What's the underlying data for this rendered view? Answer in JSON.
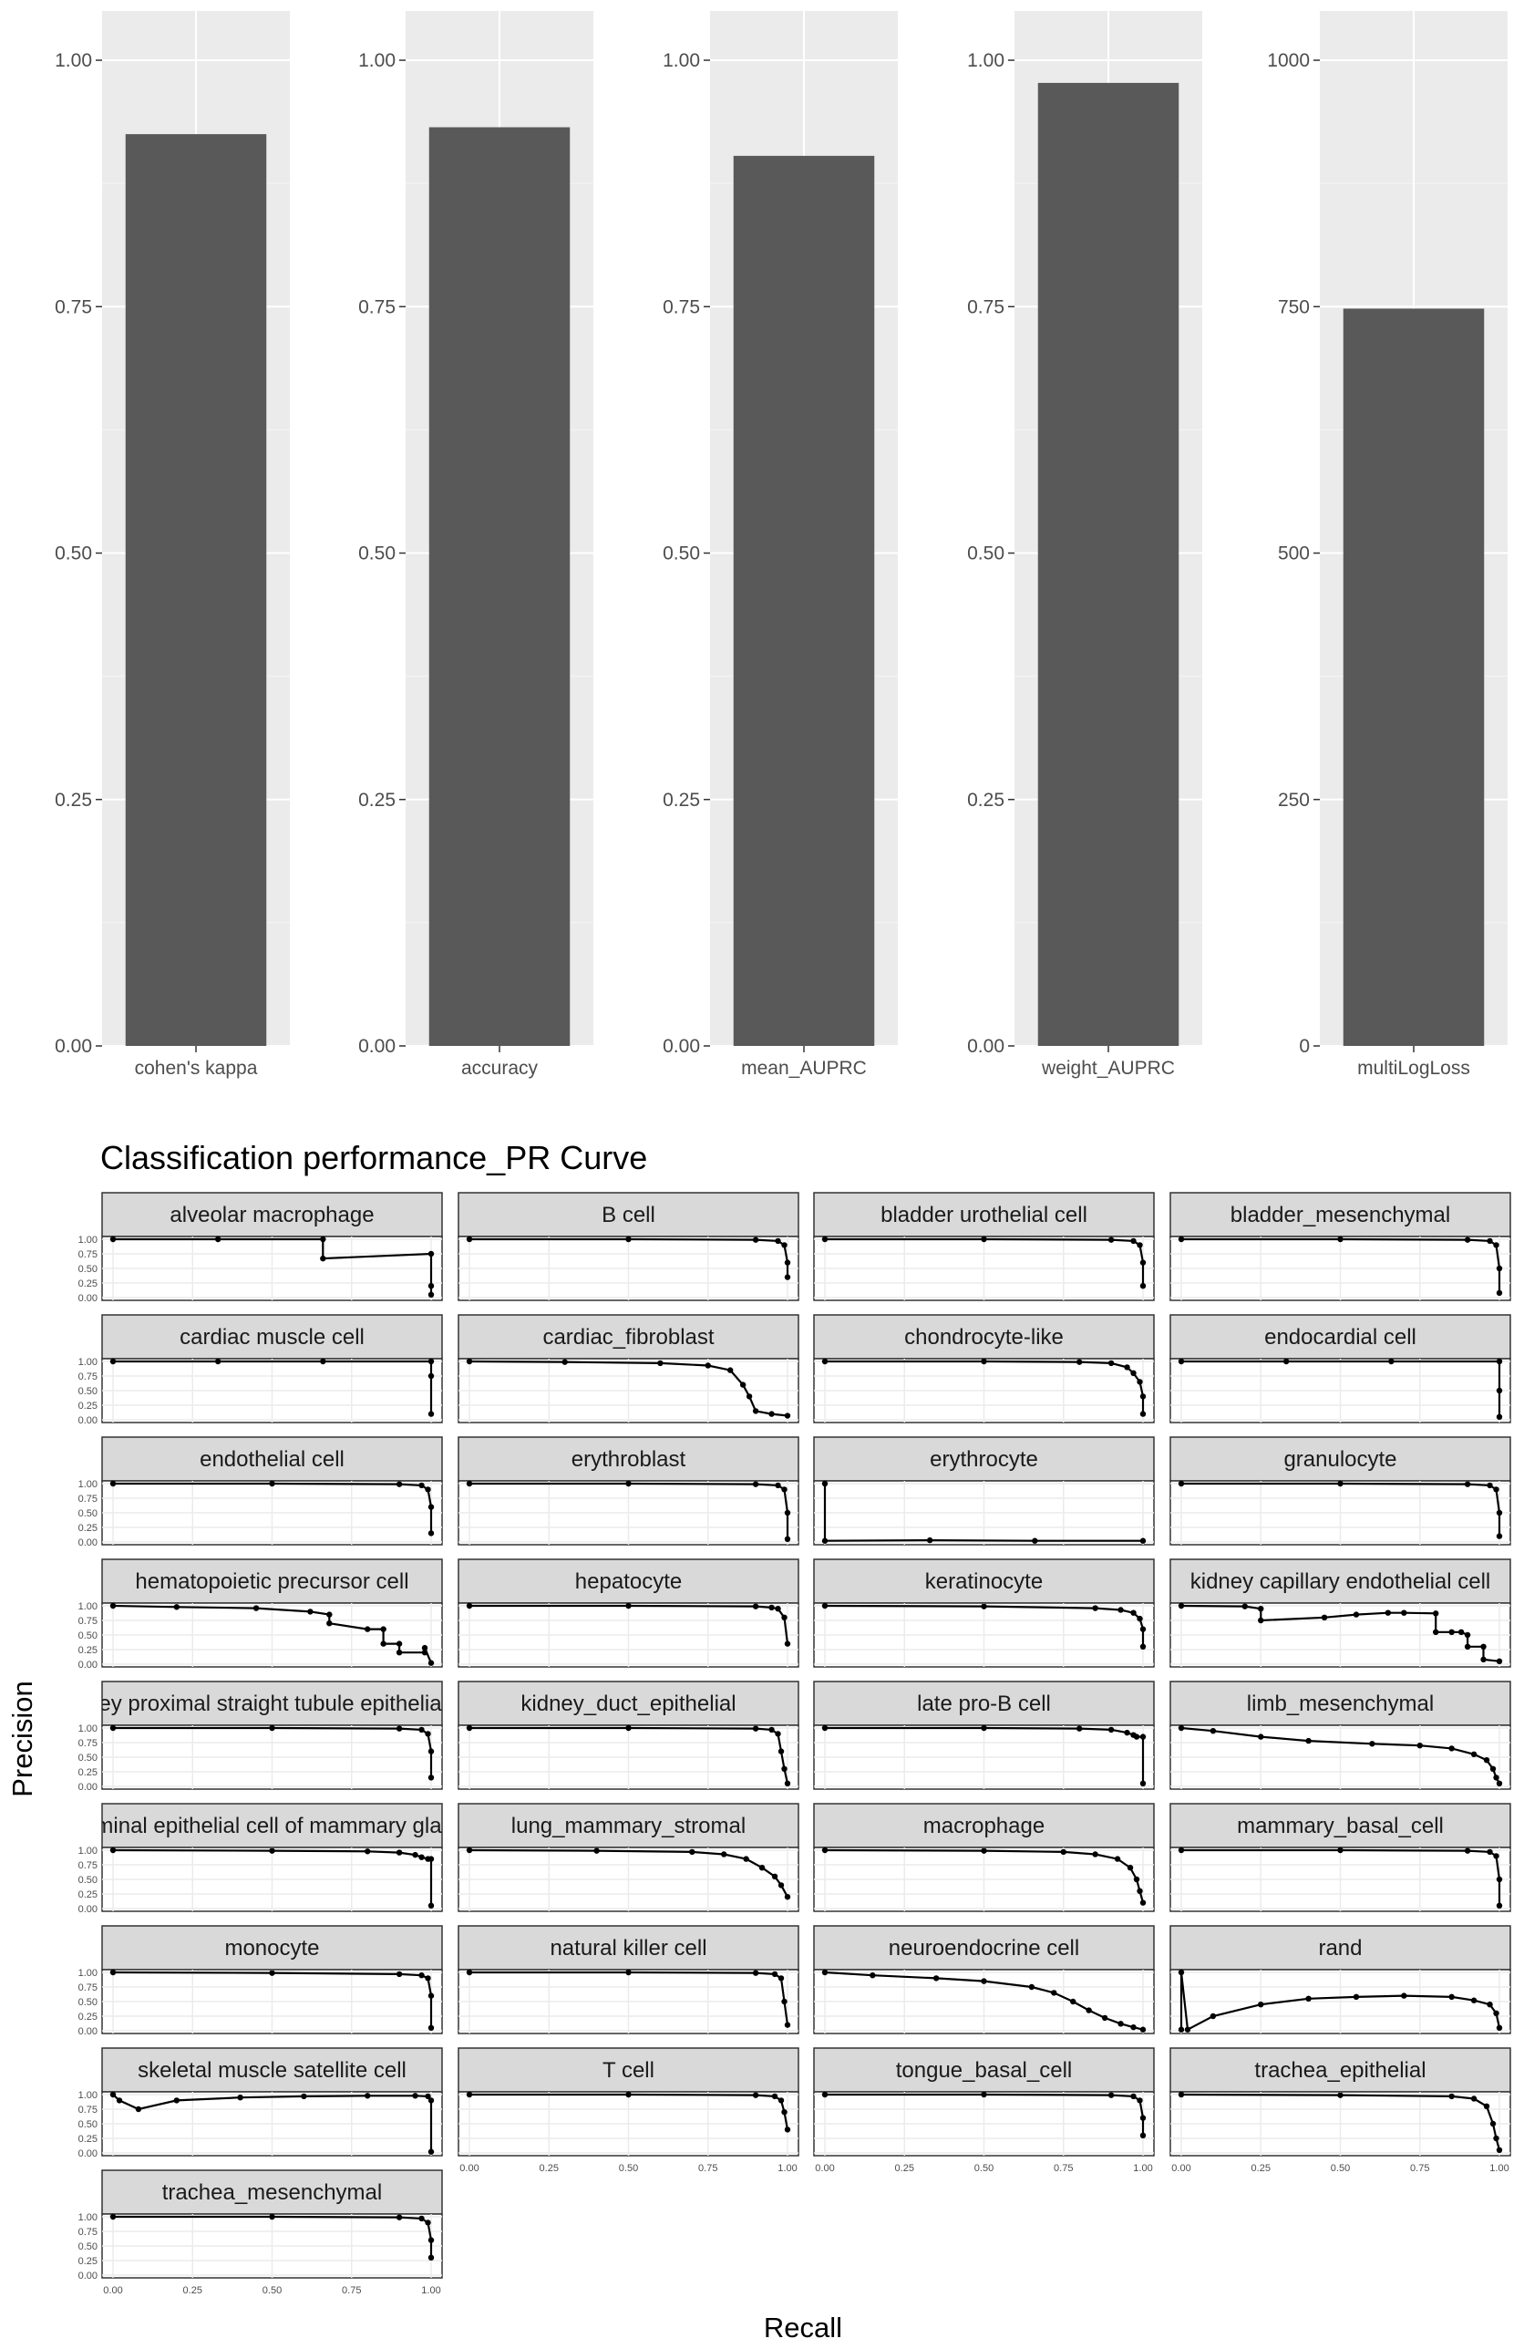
{
  "colors": {
    "panel_bg": "#ebebeb",
    "grid_major": "#ffffff",
    "bar": "#595959",
    "strip_bg": "#d9d9d9",
    "line": "#000000"
  },
  "chart_data": [
    {
      "type": "bar",
      "categories": [
        "cohen's kappa"
      ],
      "values": [
        0.925
      ],
      "ylim": [
        0,
        1.05
      ],
      "yticks": [
        "0.00",
        "0.25",
        "0.50",
        "0.75",
        "1.00"
      ],
      "ytick_values": [
        0,
        0.25,
        0.5,
        0.75,
        1.0
      ]
    },
    {
      "type": "bar",
      "categories": [
        "accuracy"
      ],
      "values": [
        0.932
      ],
      "ylim": [
        0,
        1.05
      ],
      "yticks": [
        "0.00",
        "0.25",
        "0.50",
        "0.75",
        "1.00"
      ],
      "ytick_values": [
        0,
        0.25,
        0.5,
        0.75,
        1.0
      ]
    },
    {
      "type": "bar",
      "categories": [
        "mean_AUPRC"
      ],
      "values": [
        0.903
      ],
      "ylim": [
        0,
        1.05
      ],
      "yticks": [
        "0.00",
        "0.25",
        "0.50",
        "0.75",
        "1.00"
      ],
      "ytick_values": [
        0,
        0.25,
        0.5,
        0.75,
        1.0
      ]
    },
    {
      "type": "bar",
      "categories": [
        "weight_AUPRC"
      ],
      "values": [
        0.977
      ],
      "ylim": [
        0,
        1.05
      ],
      "yticks": [
        "0.00",
        "0.25",
        "0.50",
        "0.75",
        "1.00"
      ],
      "ytick_values": [
        0,
        0.25,
        0.5,
        0.75,
        1.0
      ]
    },
    {
      "type": "bar",
      "categories": [
        "multiLogLoss"
      ],
      "values": [
        748
      ],
      "ylim": [
        0,
        1050
      ],
      "yticks": [
        "0",
        "250",
        "500",
        "750",
        "1000"
      ],
      "ytick_values": [
        0,
        250,
        500,
        750,
        1000
      ]
    },
    {
      "type": "line",
      "title": "Classification performance_PR Curve",
      "xlabel": "Recall",
      "ylabel": "Precision",
      "xlim": [
        0,
        1
      ],
      "ylim": [
        0,
        1
      ],
      "xticks": [
        "0.00",
        "0.25",
        "0.50",
        "0.75",
        "1.00"
      ],
      "yticks": [
        "0.00",
        "0.25",
        "0.50",
        "0.75",
        "1.00"
      ],
      "series": [
        {
          "name": "alveolar macrophage",
          "x": [
            0,
            0.33,
            0.66,
            0.66,
            1,
            1,
            1
          ],
          "y": [
            1,
            1,
            1,
            0.67,
            0.75,
            0.2,
            0.05
          ]
        },
        {
          "name": "B cell",
          "x": [
            0,
            0.5,
            0.9,
            0.97,
            0.99,
            1,
            1
          ],
          "y": [
            1,
            1,
            0.99,
            0.97,
            0.9,
            0.6,
            0.35
          ]
        },
        {
          "name": "bladder urothelial cell",
          "x": [
            0,
            0.5,
            0.9,
            0.97,
            0.99,
            1,
            1
          ],
          "y": [
            1,
            1,
            0.99,
            0.97,
            0.9,
            0.6,
            0.2
          ]
        },
        {
          "name": "bladder_mesenchymal",
          "x": [
            0,
            0.5,
            0.9,
            0.97,
            0.99,
            1,
            1
          ],
          "y": [
            1,
            1,
            0.99,
            0.97,
            0.9,
            0.5,
            0.08
          ]
        },
        {
          "name": "cardiac muscle cell",
          "x": [
            0,
            0.33,
            0.66,
            1,
            1,
            1
          ],
          "y": [
            1,
            1,
            1,
            1,
            0.75,
            0.1
          ]
        },
        {
          "name": "cardiac_fibroblast",
          "x": [
            0,
            0.3,
            0.6,
            0.75,
            0.82,
            0.86,
            0.88,
            0.9,
            0.95,
            1
          ],
          "y": [
            1,
            0.99,
            0.97,
            0.93,
            0.85,
            0.6,
            0.4,
            0.15,
            0.1,
            0.07
          ]
        },
        {
          "name": "chondrocyte-like",
          "x": [
            0,
            0.5,
            0.8,
            0.9,
            0.95,
            0.97,
            0.99,
            1,
            1
          ],
          "y": [
            1,
            1,
            0.99,
            0.97,
            0.9,
            0.8,
            0.65,
            0.4,
            0.1
          ]
        },
        {
          "name": "endocardial cell",
          "x": [
            0,
            0.33,
            0.66,
            1,
            1,
            1
          ],
          "y": [
            1,
            1,
            1,
            1,
            0.5,
            0.05
          ]
        },
        {
          "name": "endothelial cell",
          "x": [
            0,
            0.5,
            0.9,
            0.97,
            0.99,
            1,
            1
          ],
          "y": [
            1,
            1,
            0.99,
            0.97,
            0.9,
            0.6,
            0.15
          ]
        },
        {
          "name": "erythroblast",
          "x": [
            0,
            0.5,
            0.9,
            0.97,
            0.99,
            1,
            1
          ],
          "y": [
            1,
            1,
            0.99,
            0.97,
            0.9,
            0.5,
            0.05
          ]
        },
        {
          "name": "erythrocyte",
          "x": [
            0,
            0,
            0.33,
            0.66,
            1
          ],
          "y": [
            1,
            0.02,
            0.03,
            0.02,
            0.02
          ]
        },
        {
          "name": "granulocyte",
          "x": [
            0,
            0.5,
            0.9,
            0.97,
            0.99,
            1,
            1
          ],
          "y": [
            1,
            1,
            0.99,
            0.97,
            0.9,
            0.5,
            0.1
          ]
        },
        {
          "name": "hematopoietic precursor cell",
          "x": [
            0,
            0.2,
            0.45,
            0.62,
            0.68,
            0.68,
            0.8,
            0.85,
            0.85,
            0.9,
            0.9,
            0.98,
            0.98,
            1
          ],
          "y": [
            1,
            0.98,
            0.96,
            0.9,
            0.85,
            0.7,
            0.6,
            0.6,
            0.35,
            0.35,
            0.2,
            0.2,
            0.28,
            0.02
          ]
        },
        {
          "name": "hepatocyte",
          "x": [
            0,
            0.5,
            0.9,
            0.95,
            0.97,
            0.99,
            1
          ],
          "y": [
            1,
            1,
            0.99,
            0.97,
            0.95,
            0.8,
            0.35
          ]
        },
        {
          "name": "keratinocyte",
          "x": [
            0,
            0.5,
            0.85,
            0.93,
            0.97,
            0.99,
            1,
            1
          ],
          "y": [
            1,
            0.99,
            0.96,
            0.93,
            0.88,
            0.78,
            0.6,
            0.3
          ]
        },
        {
          "name": "kidney capillary endothelial cell",
          "x": [
            0,
            0.2,
            0.25,
            0.25,
            0.45,
            0.55,
            0.65,
            0.7,
            0.8,
            0.8,
            0.85,
            0.88,
            0.9,
            0.9,
            0.95,
            0.95,
            1
          ],
          "y": [
            1,
            0.99,
            0.95,
            0.75,
            0.8,
            0.85,
            0.88,
            0.88,
            0.87,
            0.55,
            0.55,
            0.55,
            0.5,
            0.3,
            0.3,
            0.08,
            0.05
          ]
        },
        {
          "name": "kidney proximal straight tubule epithelial cell",
          "x": [
            0,
            0.5,
            0.9,
            0.97,
            0.99,
            1,
            1
          ],
          "y": [
            1,
            1,
            0.99,
            0.97,
            0.9,
            0.6,
            0.15
          ]
        },
        {
          "name": "kidney_duct_epithelial",
          "x": [
            0,
            0.5,
            0.9,
            0.95,
            0.97,
            0.98,
            0.99,
            1
          ],
          "y": [
            1,
            1,
            0.99,
            0.97,
            0.9,
            0.6,
            0.3,
            0.05
          ]
        },
        {
          "name": "late pro-B cell",
          "x": [
            0,
            0.5,
            0.8,
            0.9,
            0.95,
            0.97,
            0.98,
            1,
            1
          ],
          "y": [
            1,
            1,
            0.99,
            0.97,
            0.92,
            0.88,
            0.85,
            0.85,
            0.05
          ]
        },
        {
          "name": "limb_mesenchymal",
          "x": [
            0,
            0.1,
            0.25,
            0.4,
            0.6,
            0.75,
            0.85,
            0.92,
            0.96,
            0.98,
            0.99,
            1
          ],
          "y": [
            1,
            0.95,
            0.85,
            0.78,
            0.73,
            0.7,
            0.65,
            0.55,
            0.45,
            0.3,
            0.15,
            0.05
          ]
        },
        {
          "name": "luminal epithelial cell of mammary gland",
          "x": [
            0,
            0.5,
            0.8,
            0.9,
            0.95,
            0.97,
            0.99,
            1,
            1
          ],
          "y": [
            1,
            0.99,
            0.98,
            0.96,
            0.92,
            0.88,
            0.85,
            0.85,
            0.05
          ]
        },
        {
          "name": "lung_mammary_stromal",
          "x": [
            0,
            0.4,
            0.7,
            0.8,
            0.87,
            0.92,
            0.96,
            0.98,
            1
          ],
          "y": [
            1,
            0.99,
            0.97,
            0.93,
            0.85,
            0.7,
            0.55,
            0.4,
            0.2
          ]
        },
        {
          "name": "macrophage",
          "x": [
            0,
            0.5,
            0.75,
            0.85,
            0.92,
            0.96,
            0.98,
            0.99,
            1
          ],
          "y": [
            1,
            0.99,
            0.97,
            0.93,
            0.85,
            0.7,
            0.5,
            0.3,
            0.1
          ]
        },
        {
          "name": "mammary_basal_cell",
          "x": [
            0,
            0.5,
            0.9,
            0.97,
            0.99,
            1,
            1
          ],
          "y": [
            1,
            1,
            0.99,
            0.97,
            0.9,
            0.5,
            0.05
          ]
        },
        {
          "name": "monocyte",
          "x": [
            0,
            0.5,
            0.9,
            0.97,
            0.99,
            1,
            1
          ],
          "y": [
            1,
            0.99,
            0.97,
            0.95,
            0.9,
            0.6,
            0.05
          ]
        },
        {
          "name": "natural killer cell",
          "x": [
            0,
            0.5,
            0.9,
            0.96,
            0.98,
            0.99,
            1
          ],
          "y": [
            1,
            1,
            0.99,
            0.97,
            0.9,
            0.5,
            0.1
          ]
        },
        {
          "name": "neuroendocrine cell",
          "x": [
            0,
            0.15,
            0.35,
            0.5,
            0.65,
            0.72,
            0.78,
            0.83,
            0.88,
            0.93,
            0.97,
            1
          ],
          "y": [
            1,
            0.95,
            0.9,
            0.85,
            0.75,
            0.65,
            0.5,
            0.35,
            0.22,
            0.12,
            0.06,
            0.02
          ]
        },
        {
          "name": "rand",
          "x": [
            0,
            0,
            0.02,
            0.1,
            0.25,
            0.4,
            0.55,
            0.7,
            0.85,
            0.92,
            0.97,
            0.99,
            1
          ],
          "y": [
            0.02,
            1,
            0.02,
            0.25,
            0.45,
            0.55,
            0.58,
            0.6,
            0.58,
            0.52,
            0.45,
            0.3,
            0.05
          ]
        },
        {
          "name": "skeletal muscle satellite cell",
          "x": [
            0,
            0.02,
            0.08,
            0.2,
            0.4,
            0.6,
            0.8,
            0.95,
            0.99,
            1,
            1
          ],
          "y": [
            1,
            0.9,
            0.75,
            0.9,
            0.95,
            0.97,
            0.98,
            0.98,
            0.97,
            0.9,
            0.02
          ]
        },
        {
          "name": "T cell",
          "x": [
            0,
            0.5,
            0.9,
            0.96,
            0.98,
            0.99,
            1
          ],
          "y": [
            1,
            1,
            0.99,
            0.97,
            0.9,
            0.7,
            0.4
          ]
        },
        {
          "name": "tongue_basal_cell",
          "x": [
            0,
            0.5,
            0.9,
            0.97,
            0.99,
            1,
            1
          ],
          "y": [
            1,
            1,
            0.99,
            0.97,
            0.9,
            0.6,
            0.3
          ]
        },
        {
          "name": "trachea_epithelial",
          "x": [
            0,
            0.5,
            0.85,
            0.92,
            0.96,
            0.98,
            0.99,
            1
          ],
          "y": [
            1,
            0.99,
            0.97,
            0.93,
            0.8,
            0.5,
            0.25,
            0.05
          ]
        },
        {
          "name": "trachea_mesenchymal",
          "x": [
            0,
            0.5,
            0.9,
            0.97,
            0.99,
            1,
            1
          ],
          "y": [
            1,
            1,
            0.99,
            0.97,
            0.9,
            0.6,
            0.3
          ]
        }
      ]
    }
  ]
}
